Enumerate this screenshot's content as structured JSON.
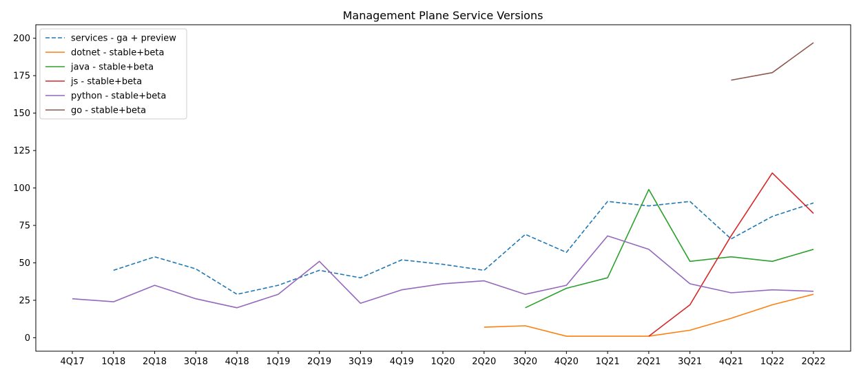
{
  "chart_data": {
    "type": "line",
    "title": "Management Plane Service Versions",
    "xlabel": "",
    "ylabel": "",
    "categories": [
      "4Q17",
      "1Q18",
      "2Q18",
      "3Q18",
      "4Q18",
      "1Q19",
      "2Q19",
      "3Q19",
      "4Q19",
      "1Q20",
      "2Q20",
      "3Q20",
      "4Q20",
      "1Q21",
      "2Q21",
      "3Q21",
      "4Q21",
      "1Q22",
      "2Q22"
    ],
    "ylim": [
      -9,
      209
    ],
    "yticks": [
      0,
      25,
      50,
      75,
      100,
      125,
      150,
      175,
      200
    ],
    "grid": false,
    "legend_position": "top-left",
    "series": [
      {
        "name": "services - ga + preview",
        "color": "#1f77b4",
        "dash": true,
        "values": [
          null,
          45,
          54,
          46,
          29,
          35,
          45,
          40,
          52,
          49,
          45,
          69,
          57,
          91,
          88,
          91,
          66,
          81,
          90
        ]
      },
      {
        "name": "dotnet - stable+beta",
        "color": "#ff7f0e",
        "dash": false,
        "values": [
          null,
          null,
          null,
          null,
          null,
          null,
          null,
          null,
          null,
          null,
          7,
          8,
          1,
          null,
          1,
          5,
          13,
          22,
          29
        ]
      },
      {
        "name": "java - stable+beta",
        "color": "#2ca02c",
        "dash": false,
        "values": [
          null,
          null,
          null,
          null,
          null,
          null,
          null,
          null,
          null,
          null,
          null,
          20,
          33,
          40,
          99,
          51,
          54,
          51,
          59
        ]
      },
      {
        "name": "js - stable+beta",
        "color": "#d62728",
        "dash": false,
        "values": [
          null,
          null,
          null,
          null,
          null,
          null,
          null,
          null,
          null,
          null,
          null,
          null,
          null,
          null,
          1,
          22,
          68,
          110,
          83
        ]
      },
      {
        "name": "python - stable+beta",
        "color": "#9467bd",
        "dash": false,
        "values": [
          26,
          24,
          35,
          26,
          20,
          29,
          51,
          23,
          32,
          36,
          38,
          29,
          35,
          68,
          59,
          36,
          30,
          32,
          31
        ]
      },
      {
        "name": "go - stable+beta",
        "color": "#8c564b",
        "dash": false,
        "values": [
          null,
          null,
          null,
          null,
          null,
          null,
          null,
          null,
          null,
          null,
          null,
          null,
          null,
          null,
          null,
          null,
          172,
          177,
          197
        ]
      }
    ]
  }
}
